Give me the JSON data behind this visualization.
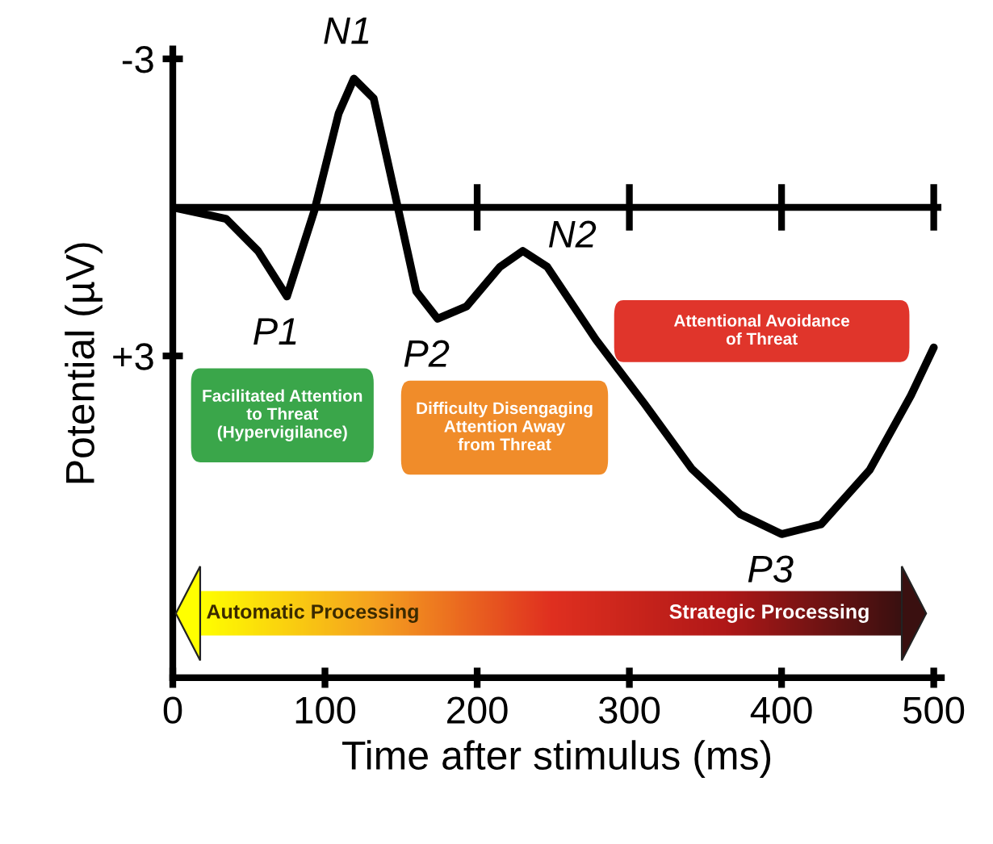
{
  "chart_data": {
    "type": "line",
    "xlabel": "Time after stimulus (ms)",
    "ylabel": "Potential (µV)",
    "x": [
      0,
      35,
      56,
      75,
      93,
      109,
      119,
      132,
      146,
      160,
      174,
      193,
      215,
      230,
      246,
      278,
      310,
      341,
      373,
      400,
      426,
      458,
      485,
      500
    ],
    "series": [
      {
        "color": "#000000",
        "values": [
          0,
          0.23,
          0.88,
          1.8,
          0.07,
          -1.9,
          -2.6,
          -2.2,
          -0.26,
          1.7,
          2.25,
          2.0,
          1.2,
          0.88,
          1.2,
          2.67,
          3.97,
          5.28,
          6.2,
          6.6,
          6.4,
          5.3,
          3.8,
          2.83
        ]
      }
    ],
    "xlim": [
      0,
      505
    ],
    "xticks": [
      0,
      100,
      200,
      300,
      400,
      500
    ],
    "ylim": [
      9.5,
      -3.2
    ],
    "yticks": [
      {
        "value": -3,
        "label": "-3"
      },
      {
        "value": 3,
        "label": "+3"
      }
    ],
    "ref_lines": [
      {
        "axis": "y",
        "value": 0,
        "color": "#000000"
      }
    ],
    "grid": false,
    "legend": false,
    "marker": "none",
    "line_style": "solid",
    "annotations": [
      {
        "text": "N1",
        "x": 119,
        "y": -2.6
      },
      {
        "text": "P1",
        "x": 75,
        "y": 1.8
      },
      {
        "text": "P2",
        "x": 174,
        "y": 2.25
      },
      {
        "text": "N2",
        "x": 230,
        "y": 0.88
      },
      {
        "text": "P3",
        "x": 400,
        "y": 6.6
      },
      "Facilitated Attention\nto Threat\n(Hypervigilance)",
      "Difficulty Disengaging\nAttention Away\nfrom Threat",
      "Attentional Avoidance\nof Threat",
      "Automatic Processing",
      "Strategic Processing"
    ]
  }
}
